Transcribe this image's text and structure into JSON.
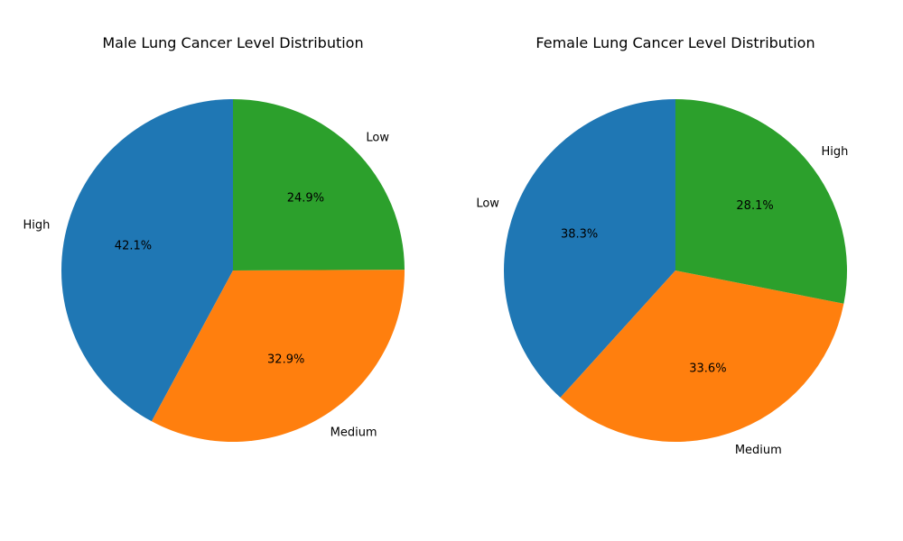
{
  "chart_data": [
    {
      "type": "pie",
      "title": "Male Lung Cancer Level Distribution",
      "start_angle_deg": 90,
      "direction": "counterclockwise",
      "slices": [
        {
          "label": "High",
          "value": 42.1,
          "pct_label": "42.1%",
          "color": "#1f77b4"
        },
        {
          "label": "Medium",
          "value": 32.9,
          "pct_label": "32.9%",
          "color": "#ff7f0e"
        },
        {
          "label": "Low",
          "value": 24.9,
          "pct_label": "24.9%",
          "color": "#2ca02c"
        }
      ]
    },
    {
      "type": "pie",
      "title": "Female Lung Cancer Level Distribution",
      "start_angle_deg": 90,
      "direction": "counterclockwise",
      "slices": [
        {
          "label": "Low",
          "value": 38.3,
          "pct_label": "38.3%",
          "color": "#1f77b4"
        },
        {
          "label": "Medium",
          "value": 33.6,
          "pct_label": "33.6%",
          "color": "#ff7f0e"
        },
        {
          "label": "High",
          "value": 28.1,
          "pct_label": "28.1%",
          "color": "#2ca02c"
        }
      ]
    }
  ]
}
